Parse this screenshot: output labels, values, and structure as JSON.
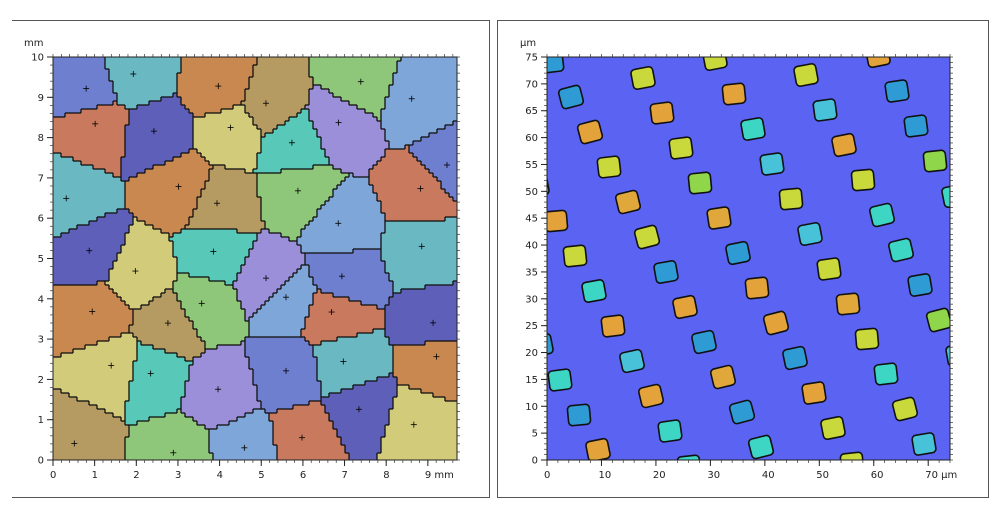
{
  "panels": [
    {
      "name": "grain-map",
      "unit_label": "mm",
      "x_axis": {
        "min": 0,
        "max": 9.7,
        "ticks": [
          0,
          1,
          2,
          3,
          4,
          5,
          6,
          7,
          8,
          9
        ],
        "tick_labels": [
          "0",
          "1",
          "2",
          "3",
          "4",
          "5",
          "6",
          "7",
          "8",
          "9 mm"
        ]
      },
      "y_axis": {
        "min": 0,
        "max": 10,
        "ticks": [
          0,
          1,
          2,
          3,
          4,
          5,
          6,
          7,
          8,
          9,
          10
        ],
        "tick_labels": [
          "0",
          "1",
          "2",
          "3",
          "4",
          "5",
          "6",
          "7",
          "8",
          "9",
          "10"
        ]
      },
      "palette": [
        "#6f7fd0",
        "#6ab9c2",
        "#c9884f",
        "#b59a62",
        "#8fc77a",
        "#7ea6d8",
        "#c97a5e",
        "#5e5fb8",
        "#d2cc7a",
        "#58c9b8",
        "#9a8fd8"
      ]
    },
    {
      "name": "particle-map",
      "unit_label": "µm",
      "x_axis": {
        "min": 0,
        "max": 74,
        "ticks": [
          0,
          10,
          20,
          30,
          40,
          50,
          60,
          70
        ],
        "tick_labels": [
          "0",
          "10",
          "20",
          "30",
          "40",
          "50",
          "60",
          "70 µm"
        ]
      },
      "y_axis": {
        "min": 0,
        "max": 75,
        "ticks": [
          0,
          5,
          10,
          15,
          20,
          25,
          30,
          35,
          40,
          45,
          50,
          55,
          60,
          65,
          70,
          75
        ],
        "tick_labels": [
          "0",
          "5",
          "10",
          "15",
          "20",
          "25",
          "30",
          "35",
          "40",
          "45",
          "50",
          "55",
          "60",
          "65",
          "70",
          "75"
        ]
      },
      "background_color": "#5a63f2",
      "palette": [
        "#e3a23a",
        "#2f9bd4",
        "#8fd64a",
        "#c9d83a",
        "#3dd6c4",
        "#e0a83a",
        "#47c2d8"
      ]
    }
  ]
}
